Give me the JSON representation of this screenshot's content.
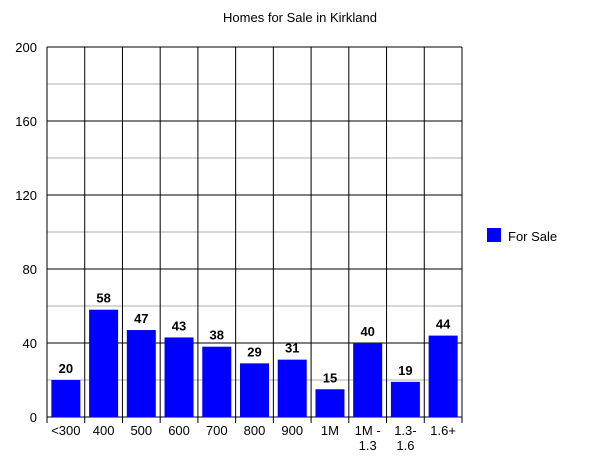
{
  "chart_data": {
    "type": "bar",
    "title": "Homes for Sale in Kirkland",
    "categories": [
      [
        "<300"
      ],
      [
        "400"
      ],
      [
        "500"
      ],
      [
        "600"
      ],
      [
        "700"
      ],
      [
        "800"
      ],
      [
        "900"
      ],
      [
        "1M"
      ],
      [
        "1M -",
        "1.3"
      ],
      [
        "1.3-",
        "1.6"
      ],
      [
        "1.6+"
      ]
    ],
    "series": [
      {
        "name": "For Sale",
        "color": "#0000ff",
        "values": [
          20,
          58,
          47,
          43,
          38,
          29,
          31,
          15,
          40,
          19,
          44
        ]
      }
    ],
    "ylim": [
      0,
      200
    ],
    "yticks": [
      0,
      40,
      80,
      120,
      160,
      200
    ],
    "xlabel": "",
    "ylabel": "",
    "grid": true,
    "legend": "right"
  }
}
